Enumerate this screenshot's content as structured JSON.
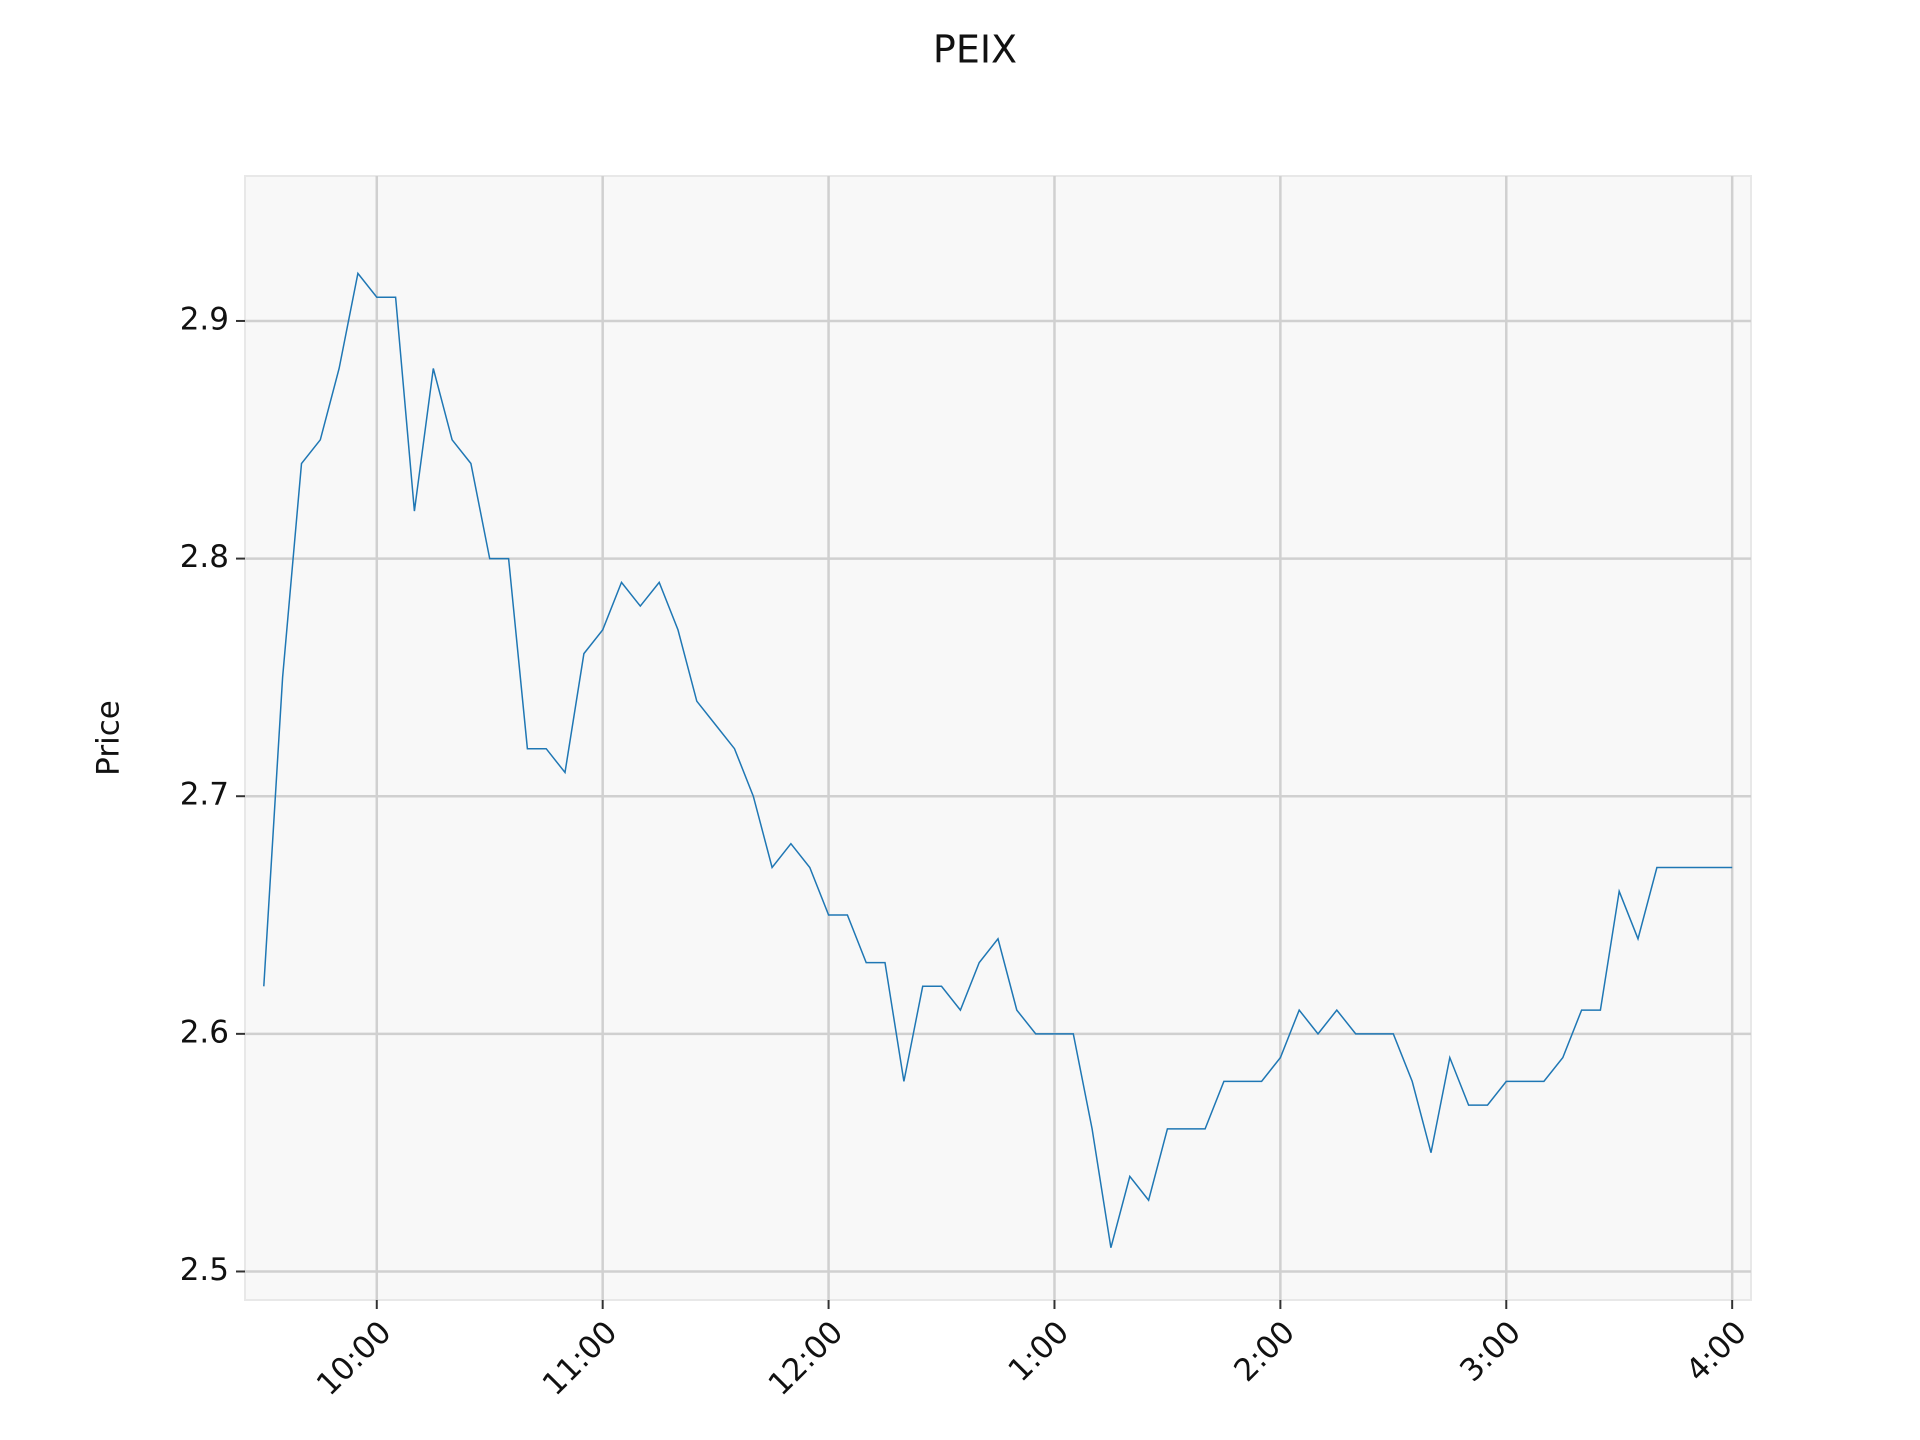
{
  "chart_data": {
    "type": "line",
    "title": "PEIX",
    "y_label": "Price",
    "x": [
      "9:30",
      "9:35",
      "9:40",
      "9:45",
      "9:50",
      "9:55",
      "10:00",
      "10:05",
      "10:10",
      "10:15",
      "10:20",
      "10:25",
      "10:30",
      "10:35",
      "10:40",
      "10:45",
      "10:50",
      "10:55",
      "11:00",
      "11:05",
      "11:10",
      "11:15",
      "11:20",
      "11:25",
      "11:30",
      "11:35",
      "11:40",
      "11:45",
      "11:50",
      "11:55",
      "12:00",
      "12:05",
      "12:10",
      "12:15",
      "12:20",
      "12:25",
      "12:30",
      "12:35",
      "12:40",
      "12:45",
      "12:50",
      "12:55",
      "1:00",
      "1:05",
      "1:10",
      "1:15",
      "1:20",
      "1:25",
      "1:30",
      "1:35",
      "1:40",
      "1:45",
      "1:50",
      "1:55",
      "2:00",
      "2:05",
      "2:10",
      "2:15",
      "2:20",
      "2:25",
      "2:30",
      "2:35",
      "2:40",
      "2:45",
      "2:50",
      "2:55",
      "3:00",
      "3:05",
      "3:10",
      "3:15",
      "3:20",
      "3:25",
      "3:30",
      "3:35",
      "3:40",
      "3:45",
      "3:50",
      "3:55",
      "4:00"
    ],
    "series": [
      {
        "name": "Price",
        "color": "#1f77b4",
        "values": [
          2.62,
          2.75,
          2.84,
          2.85,
          2.88,
          2.92,
          2.91,
          2.91,
          2.82,
          2.88,
          2.85,
          2.84,
          2.8,
          2.8,
          2.72,
          2.72,
          2.71,
          2.76,
          2.77,
          2.79,
          2.78,
          2.79,
          2.77,
          2.74,
          2.73,
          2.72,
          2.7,
          2.67,
          2.68,
          2.67,
          2.65,
          2.65,
          2.63,
          2.63,
          2.58,
          2.62,
          2.62,
          2.61,
          2.63,
          2.64,
          2.61,
          2.6,
          2.6,
          2.6,
          2.56,
          2.51,
          2.54,
          2.53,
          2.56,
          2.56,
          2.56,
          2.58,
          2.58,
          2.58,
          2.59,
          2.61,
          2.6,
          2.61,
          2.6,
          2.6,
          2.6,
          2.58,
          2.55,
          2.59,
          2.57,
          2.57,
          2.58,
          2.58,
          2.58,
          2.59,
          2.61,
          2.61,
          2.66,
          2.64,
          2.67,
          2.67,
          2.67,
          2.67,
          2.67
        ]
      }
    ],
    "xlim": [
      "9:25",
      "4:05"
    ],
    "xticks": [
      "10:00",
      "11:00",
      "12:00",
      "1:00",
      "2:00",
      "3:00",
      "4:00"
    ],
    "ylim": [
      2.488,
      2.961
    ],
    "yticks": [
      2.5,
      2.6,
      2.7,
      2.8,
      2.9
    ],
    "grid": true
  }
}
